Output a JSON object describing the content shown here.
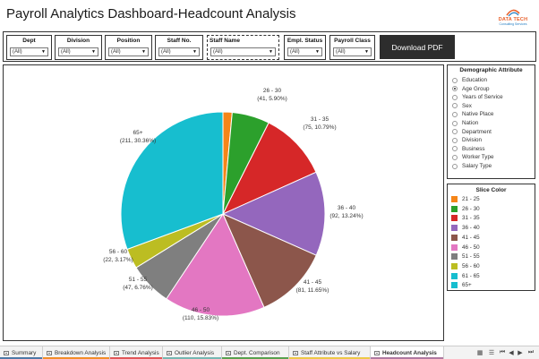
{
  "title": "Payroll Analytics Dashboard-Headcount Analysis",
  "logo": {
    "line1": "DATA TECH",
    "line2": "Consulting Services"
  },
  "filters": [
    {
      "label": "Dept",
      "value": "(All)"
    },
    {
      "label": "Division",
      "value": "(All)"
    },
    {
      "label": "Position",
      "value": "(All)"
    },
    {
      "label": "Staff No.",
      "value": "(All)"
    },
    {
      "label": "Staff Name",
      "value": "(All)"
    },
    {
      "label": "Empl. Status",
      "value": "(All)"
    },
    {
      "label": "Payroll Class",
      "value": "(All)"
    }
  ],
  "download_label": "Download PDF",
  "demographic": {
    "title": "Demographic Attribute",
    "options": [
      "Education",
      "Age Group",
      "Years of Service",
      "Sex",
      "Native Place",
      "Nation",
      "Department",
      "Division",
      "Business",
      "Worker Type",
      "Salary Type"
    ],
    "selected": "Age Group"
  },
  "slice_legend": {
    "title": "Slice Color",
    "items": [
      {
        "label": "21 - 25",
        "color": "#f58518"
      },
      {
        "label": "26 - 30",
        "color": "#2ca02c"
      },
      {
        "label": "31 - 35",
        "color": "#d62728"
      },
      {
        "label": "36 - 40",
        "color": "#9467bd"
      },
      {
        "label": "41 - 45",
        "color": "#8c564b"
      },
      {
        "label": "46 - 50",
        "color": "#e377c2"
      },
      {
        "label": "51 - 55",
        "color": "#7f7f7f"
      },
      {
        "label": "56 - 60",
        "color": "#bcbd22"
      },
      {
        "label": "61 - 65",
        "color": "#17becf"
      },
      {
        "label": "65+",
        "color": "#17becf"
      }
    ]
  },
  "chart_data": {
    "type": "pie",
    "slices": [
      {
        "category": "21 - 25",
        "value": 10,
        "color": "#f58518",
        "label_lines": []
      },
      {
        "category": "26 - 30",
        "value": 41,
        "percent": 5.9,
        "color": "#2ca02c",
        "label_lines": [
          "26 - 30",
          "(41, 5.90%)"
        ]
      },
      {
        "category": "31 - 35",
        "value": 75,
        "percent": 10.79,
        "color": "#d62728",
        "label_lines": [
          "31 - 35",
          "(75, 10.79%)"
        ]
      },
      {
        "category": "36 - 40",
        "value": 92,
        "percent": 13.24,
        "color": "#9467bd",
        "label_lines": [
          "36 - 40",
          "(92, 13.24%)"
        ]
      },
      {
        "category": "41 - 45",
        "value": 81,
        "percent": 11.65,
        "color": "#8c564b",
        "label_lines": [
          "41 - 45",
          "(81, 11.65%)"
        ]
      },
      {
        "category": "46 - 50",
        "value": 110,
        "percent": 15.83,
        "color": "#e377c2",
        "label_lines": [
          "46 - 50",
          "(110, 15.83%)"
        ]
      },
      {
        "category": "51 - 55",
        "value": 47,
        "percent": 6.76,
        "color": "#7f7f7f",
        "label_lines": [
          "51 - 55",
          "(47, 6.76%)"
        ]
      },
      {
        "category": "56 - 60",
        "value": 22,
        "percent": 3.17,
        "color": "#bcbd22",
        "label_lines": [
          "56 - 60",
          "(22, 3.17%)"
        ]
      },
      {
        "category": "65+",
        "value": 211,
        "percent": 30.36,
        "color": "#17becf",
        "label_lines": [
          "65+",
          "(211, 30.36%)"
        ]
      }
    ]
  },
  "tabs": [
    {
      "label": "Summary",
      "color": "#4e79a7",
      "active": false
    },
    {
      "label": "Breakdown Analysis",
      "color": "#f28e2b",
      "active": false
    },
    {
      "label": "Trend Analysis",
      "color": "#e15759",
      "active": false
    },
    {
      "label": "Outlier Analysis",
      "color": "#76b7b2",
      "active": false
    },
    {
      "label": "Dept. Comparison",
      "color": "#59a14f",
      "active": false
    },
    {
      "label": "Staff Attribute vs Salary",
      "color": "#edc948",
      "active": false
    },
    {
      "label": "Headcount Analysis",
      "color": "#b07aa1",
      "active": true
    }
  ]
}
